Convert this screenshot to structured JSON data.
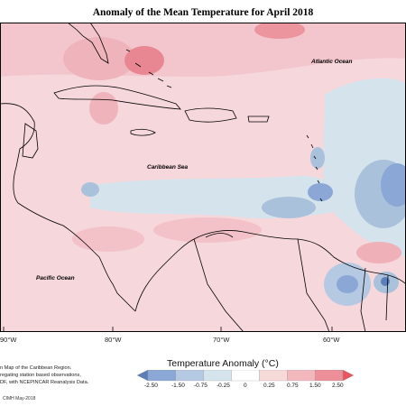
{
  "title": "Anomaly of the Mean Temperature for April 2018",
  "labels": {
    "atlantic": "Atlantic Ocean",
    "caribbean": "Caribbean Sea",
    "pacific": "Pacific Ocean"
  },
  "longitudes": [
    "90°W",
    "80°W",
    "70°W",
    "60°W"
  ],
  "credit_lines": [
    "n Map of the Caribbean Region.",
    "regating station based observations,",
    "DF, with NCEPINCAR Reanalysis Data."
  ],
  "legend": {
    "title": "Temperature Anomaly (°C)",
    "ticks": [
      "-2.50",
      "-1.50",
      "-0.75",
      "-0.25",
      "0",
      "0.25",
      "0.75",
      "1.50",
      "2.50"
    ],
    "colors": [
      "#5b7fb8",
      "#8aa7d6",
      "#b6c9e3",
      "#d5e3ec",
      "#ffffff",
      "#f6dada",
      "#f2b8be",
      "#ec8f98",
      "#e7565f"
    ]
  },
  "footer": "CIMH May-2018"
}
